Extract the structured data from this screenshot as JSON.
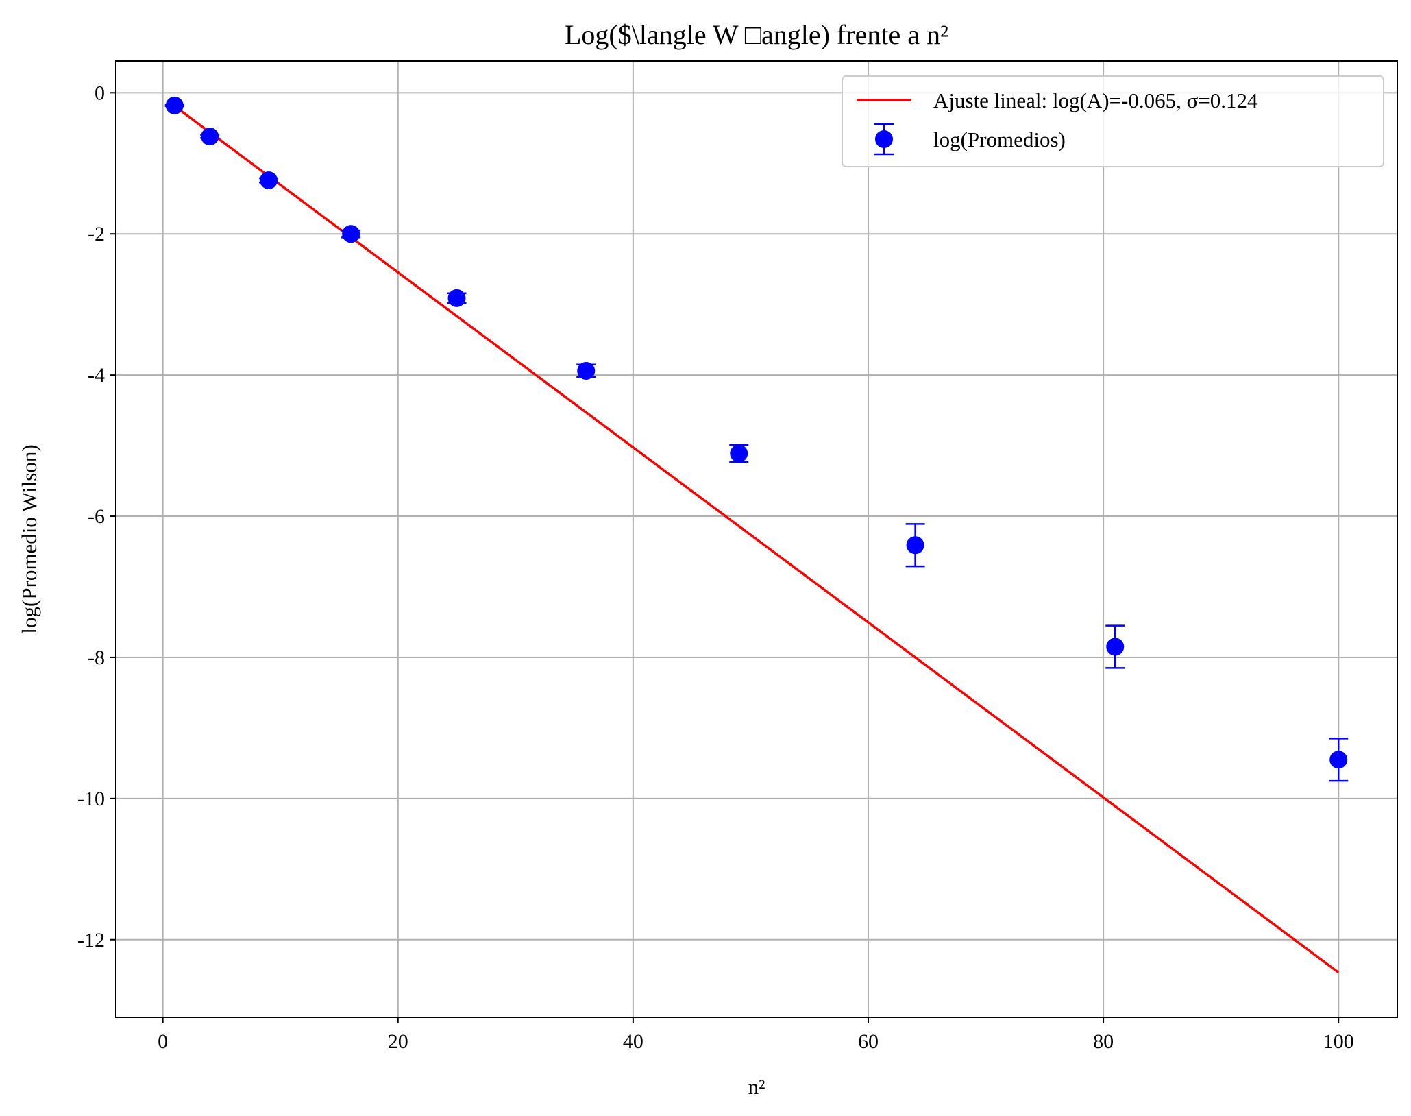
{
  "chart_data": {
    "type": "scatter",
    "title": "Log($\\langle W □angle) frente a n²",
    "xlabel": "n²",
    "ylabel": "log(Promedio Wilson)",
    "xlim": [
      -4,
      105
    ],
    "ylim": [
      -13.1,
      0.45
    ],
    "grid": true,
    "legend_position": "top-right",
    "x_ticks": [
      {
        "value": 0,
        "label": "0"
      },
      {
        "value": 20,
        "label": "20"
      },
      {
        "value": 40,
        "label": "40"
      },
      {
        "value": 60,
        "label": "60"
      },
      {
        "value": 80,
        "label": "80"
      },
      {
        "value": 100,
        "label": "100"
      }
    ],
    "y_ticks": [
      {
        "value": 0,
        "label": "0"
      },
      {
        "value": -2,
        "label": "-2"
      },
      {
        "value": -4,
        "label": "-4"
      },
      {
        "value": -6,
        "label": "-6"
      },
      {
        "value": -8,
        "label": "-8"
      },
      {
        "value": -10,
        "label": "-10"
      },
      {
        "value": -12,
        "label": "-12"
      }
    ],
    "series": [
      {
        "name": "log(Promedios)",
        "kind": "errorbar",
        "color": "#0000ff",
        "points": [
          {
            "x": 1,
            "y": -0.18,
            "err": 0.01
          },
          {
            "x": 4,
            "y": -0.62,
            "err": 0.02
          },
          {
            "x": 9,
            "y": -1.24,
            "err": 0.03
          },
          {
            "x": 16,
            "y": -2.0,
            "err": 0.05
          },
          {
            "x": 25,
            "y": -2.91,
            "err": 0.07
          },
          {
            "x": 36,
            "y": -3.94,
            "err": 0.09
          },
          {
            "x": 49,
            "y": -5.11,
            "err": 0.12
          },
          {
            "x": 64,
            "y": -6.41,
            "err": 0.3
          },
          {
            "x": 81,
            "y": -7.85,
            "err": 0.3
          },
          {
            "x": 100,
            "y": -9.45,
            "err": 0.3
          }
        ]
      },
      {
        "name": "Ajuste lineal: log(A)=-0.065, σ=0.124",
        "kind": "line",
        "color": "#ff0000",
        "x": [
          1,
          100
        ],
        "y": [
          -0.189,
          -12.465
        ]
      }
    ]
  }
}
